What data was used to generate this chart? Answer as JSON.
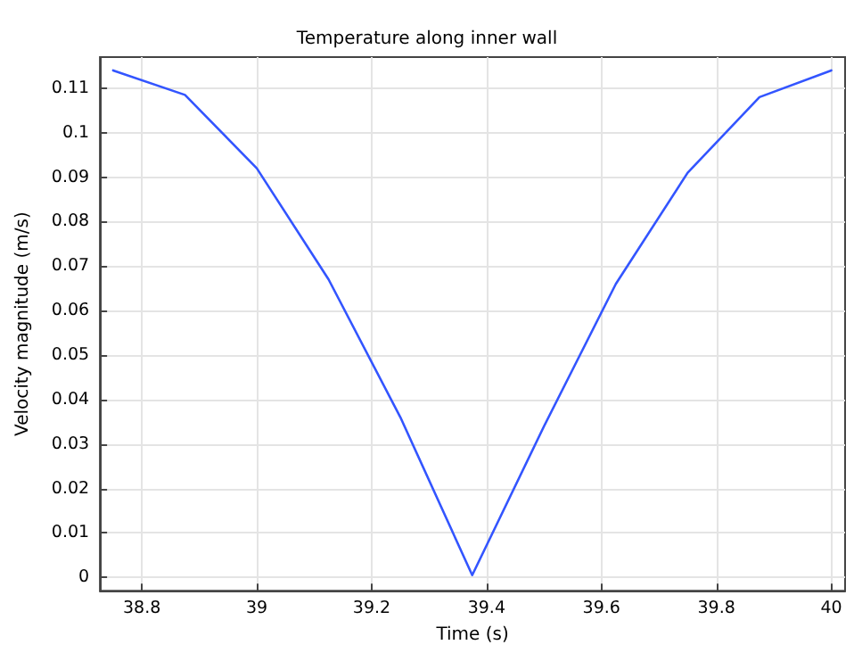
{
  "chart_data": {
    "type": "line",
    "title": "Temperature along inner wall",
    "xlabel": "Time (s)",
    "ylabel": "Velocity magnitude (m/s)",
    "x": [
      38.75,
      38.875,
      39,
      39.125,
      39.25,
      39.375,
      39.5,
      39.625,
      39.75,
      39.875,
      40
    ],
    "series": [
      {
        "color": "#3355ff",
        "values": [
          0.114,
          0.1085,
          0.092,
          0.067,
          0.036,
          0.0005,
          0.034,
          0.066,
          0.091,
          0.108,
          0.114
        ]
      }
    ],
    "xlim": [
      38.727,
      40.024
    ],
    "ylim": [
      -0.003,
      0.117
    ],
    "xticks": [
      38.8,
      39,
      39.2,
      39.4,
      39.6,
      39.8,
      40
    ],
    "yticks": [
      0,
      0.01,
      0.02,
      0.03,
      0.04,
      0.05,
      0.06,
      0.07,
      0.08,
      0.09,
      0.1,
      0.11
    ],
    "grid": true,
    "marker": "none",
    "line_style": "solid"
  }
}
